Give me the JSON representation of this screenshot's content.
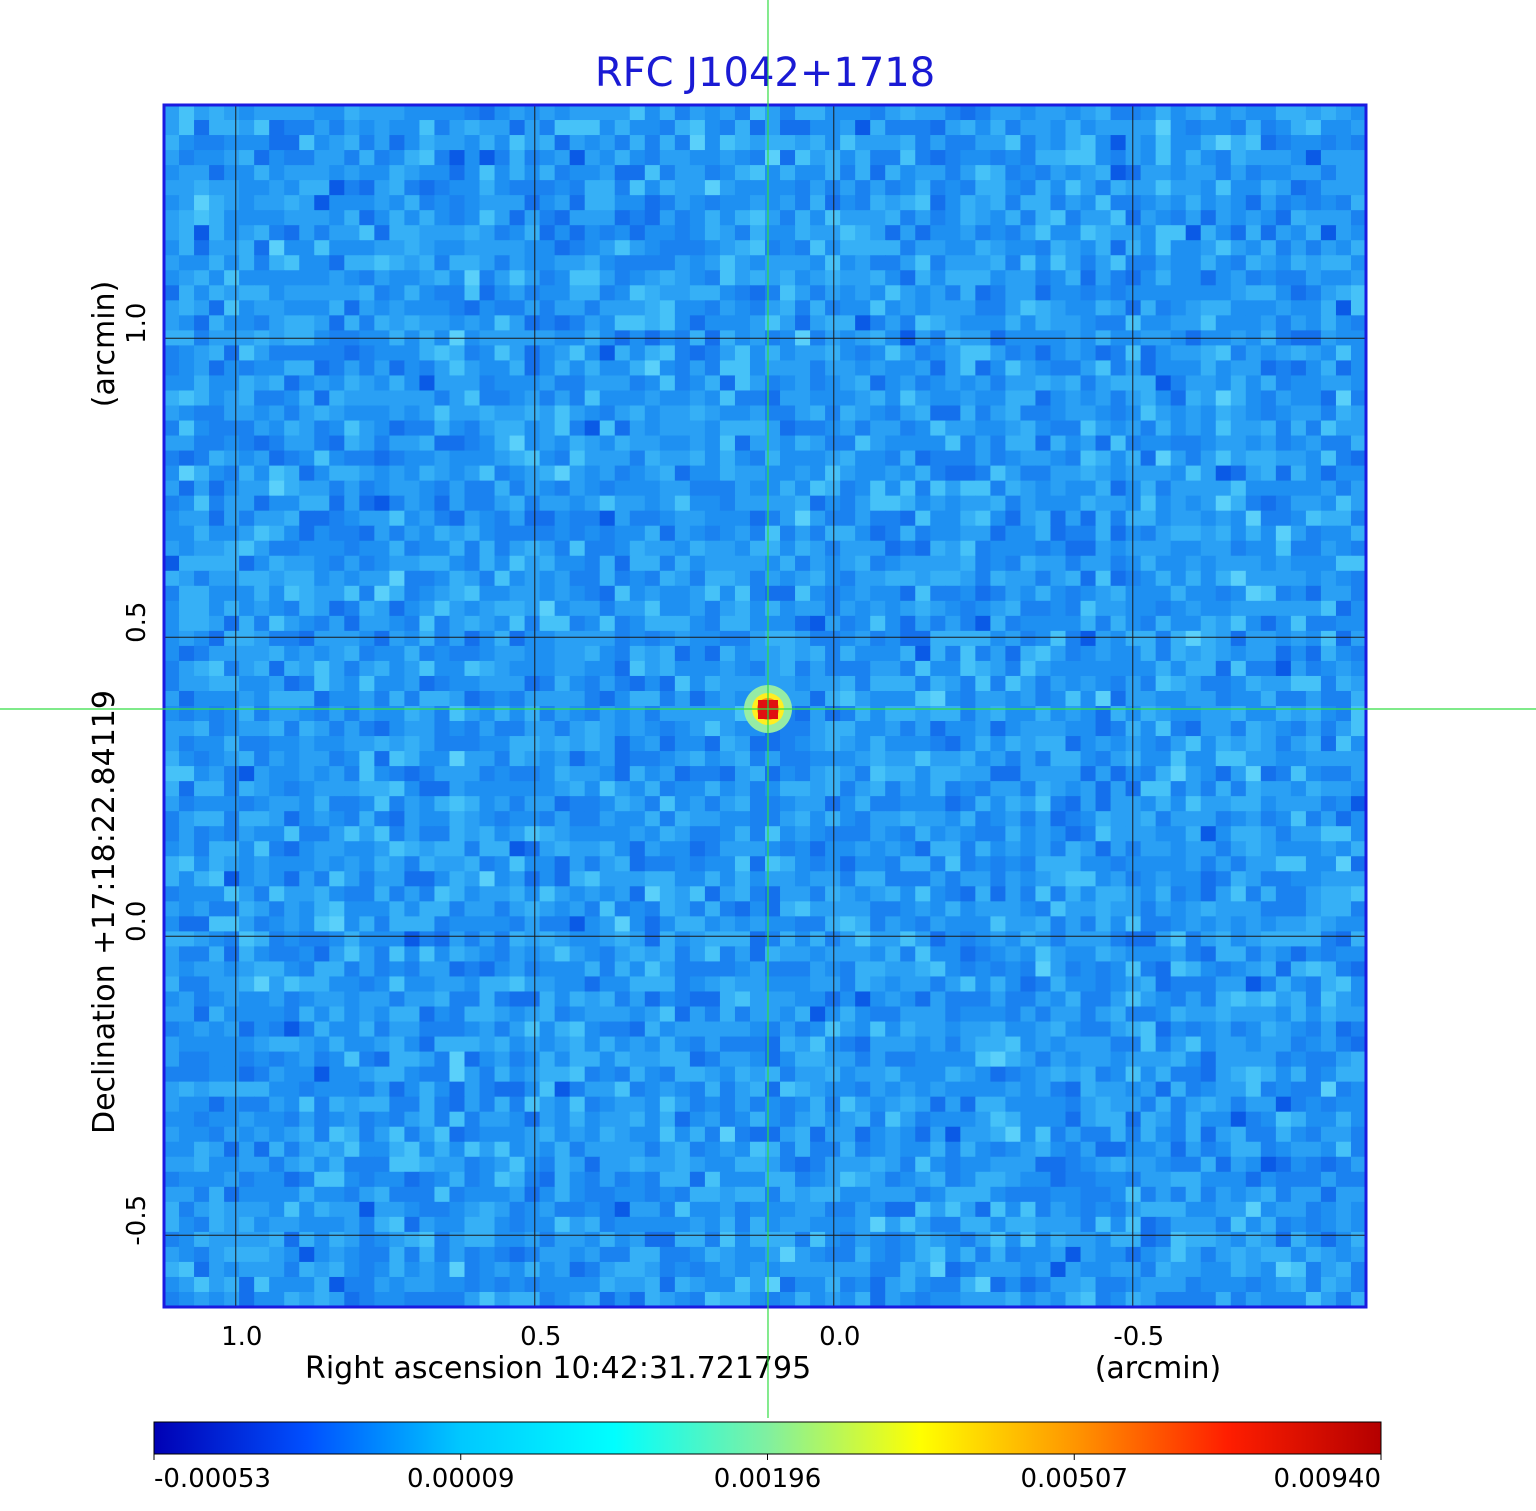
{
  "title": "RFC J1042+1718",
  "x_axis": {
    "label": "Right ascension  10:42:31.721795",
    "unit": "(arcmin)",
    "ticks": [
      "1.0",
      "0.5",
      "0.0",
      "-0.5"
    ]
  },
  "y_axis": {
    "label": "Declination  +17:18:22.84119",
    "unit": "(arcmin)",
    "ticks": [
      "1.0",
      "0.5",
      "0.0",
      "-0.5"
    ]
  },
  "colorbar": {
    "ticks": [
      "-0.00053",
      "0.00009",
      "0.00196",
      "0.00507",
      "0.00940"
    ],
    "stops": [
      "#0000b4",
      "#0050ff",
      "#00c8ff",
      "#00ffff",
      "#80f0a0",
      "#ffff00",
      "#ff9600",
      "#ff1e00",
      "#b40000"
    ]
  },
  "colors": {
    "title": "#1a1ad4",
    "frame": "#1a1ae0",
    "crosshair": "#33dd44",
    "grid": "#1a1a1a",
    "source_peak": "#e01010"
  },
  "chart_data": {
    "type": "heatmap",
    "title": "RFC J1042+1718",
    "xlabel": "Right ascension  10:42:31.721795",
    "ylabel": "Declination  +17:18:22.84119",
    "x_unit": "arcmin",
    "y_unit": "arcmin",
    "xlim": [
      1.12,
      -0.89
    ],
    "ylim": [
      -0.62,
      1.39
    ],
    "x_ticks": [
      1.0,
      0.5,
      0.0,
      -0.5
    ],
    "y_ticks": [
      1.0,
      0.5,
      0.0,
      -0.5
    ],
    "grid": true,
    "source": {
      "x": 0.11,
      "y": 0.38,
      "peak": 0.0094
    },
    "crosshair": {
      "x": 0.11,
      "y": 0.38
    },
    "colorscale": {
      "min": -0.00053,
      "max": 0.0094,
      "ticks": [
        -0.00053,
        9e-05,
        0.00196,
        0.00507,
        0.0094
      ]
    }
  }
}
